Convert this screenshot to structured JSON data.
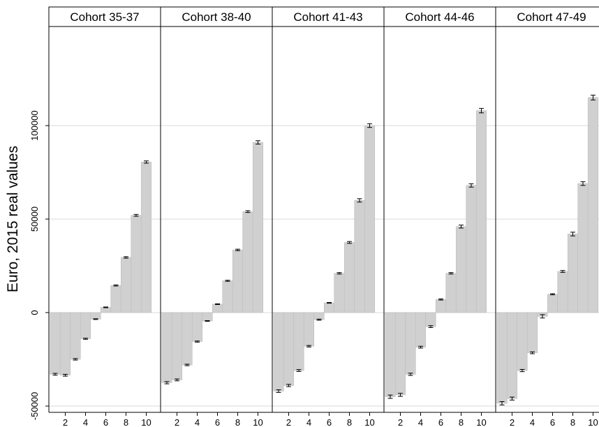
{
  "chart_data": {
    "type": "bar",
    "ylabel": "Euro, 2015 real values",
    "ylim": [
      -52000,
      137000
    ],
    "y_ticks": [
      -50000,
      0,
      50000,
      100000
    ],
    "x_ticks": [
      2,
      4,
      6,
      8,
      10
    ],
    "categories": [
      1,
      2,
      3,
      4,
      5,
      6,
      7,
      8,
      9,
      10
    ],
    "grid": true,
    "error_bars": true,
    "bar_color": "#d0d0d0",
    "panels": [
      {
        "name": "Cohort 35-37",
        "values": [
          -33000,
          -33500,
          -25000,
          -14000,
          -3500,
          2800,
          14500,
          29500,
          52000,
          80500
        ],
        "errors": [
          500,
          500,
          400,
          300,
          200,
          200,
          300,
          400,
          500,
          600
        ]
      },
      {
        "name": "Cohort 38-40",
        "values": [
          -37500,
          -36000,
          -28000,
          -15500,
          -4500,
          4500,
          17000,
          33500,
          54000,
          91000
        ],
        "errors": [
          600,
          500,
          400,
          300,
          200,
          200,
          300,
          400,
          500,
          900
        ]
      },
      {
        "name": "Cohort 41-43",
        "values": [
          -42000,
          -39000,
          -31000,
          -18000,
          -3800,
          5200,
          21000,
          37500,
          60000,
          100000
        ],
        "errors": [
          700,
          600,
          500,
          400,
          300,
          200,
          400,
          500,
          900,
          1000
        ]
      },
      {
        "name": "Cohort 44-46",
        "values": [
          -45000,
          -44000,
          -33000,
          -18500,
          -7500,
          7000,
          21000,
          46000,
          68000,
          108000
        ],
        "errors": [
          900,
          800,
          600,
          500,
          500,
          300,
          400,
          800,
          900,
          1200
        ]
      },
      {
        "name": "Cohort 47-49",
        "values": [
          -48500,
          -46000,
          -31000,
          -21500,
          -2000,
          9800,
          22000,
          42000,
          69000,
          115000
        ],
        "errors": [
          900,
          800,
          600,
          500,
          900,
          300,
          500,
          1000,
          1000,
          1300
        ]
      }
    ]
  }
}
